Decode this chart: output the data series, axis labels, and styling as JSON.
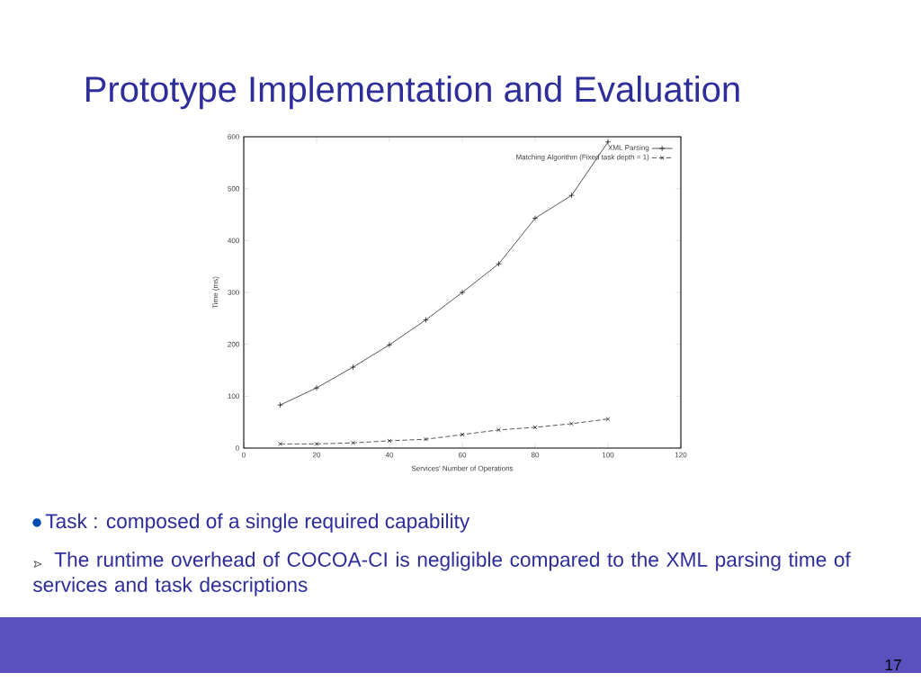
{
  "chart_data": {
    "type": "line",
    "title": "Prototype Implementation and Evaluation",
    "xlabel": "Services' Number of Operations",
    "ylabel": "Time (ms)",
    "x": [
      10,
      20,
      30,
      40,
      50,
      60,
      70,
      80,
      90,
      100
    ],
    "series": [
      {
        "name": "XML Parsing",
        "color": "#000000",
        "marker": "plus",
        "line_style": "solid",
        "values": [
          83,
          116,
          156,
          199,
          247,
          300,
          355,
          443,
          487,
          590
        ]
      },
      {
        "name": "Matching Algorithm (Fixed task depth = 1)",
        "color": "#000000",
        "marker": "cross",
        "line_style": "dashed",
        "values": [
          8,
          8,
          10,
          14,
          17,
          26,
          35,
          40,
          47,
          56
        ]
      }
    ],
    "xlim": [
      0,
      120
    ],
    "ylim": [
      0,
      600
    ],
    "xticks": [
      0,
      20,
      40,
      60,
      80,
      100,
      120
    ],
    "yticks": [
      0,
      100,
      200,
      300,
      400,
      500,
      600
    ],
    "grid": false,
    "legend": "top right",
    "annotations": [
      "Task : composed of a single required capability",
      "The runtime overhead of COCOA-CI is negligible compared to the XML parsing time of services and task descriptions",
      "17"
    ]
  }
}
